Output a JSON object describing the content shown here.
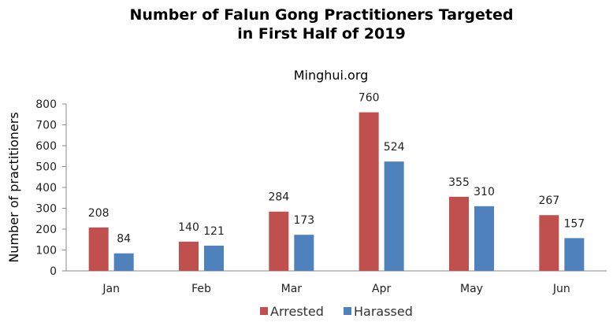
{
  "chart_data": {
    "type": "bar",
    "title_line1": "Number of Falun Gong Practitioners Targeted",
    "title_line2": "in First Half of 2019",
    "subtitle": "Minghui.org",
    "xlabel": "",
    "ylabel": "Number of practitioners",
    "ylim": [
      0,
      800
    ],
    "yticks": [
      0,
      100,
      200,
      300,
      400,
      500,
      600,
      700,
      800
    ],
    "categories": [
      "Jan",
      "Feb",
      "Mar",
      "Apr",
      "May",
      "Jun"
    ],
    "series": [
      {
        "name": "Arrested",
        "color": "#C0504D",
        "values": [
          208,
          140,
          284,
          760,
          355,
          267
        ]
      },
      {
        "name": "Harassed",
        "color": "#4F81BD",
        "values": [
          84,
          121,
          173,
          524,
          310,
          157
        ]
      }
    ],
    "grid": false,
    "legend": "bottom"
  }
}
